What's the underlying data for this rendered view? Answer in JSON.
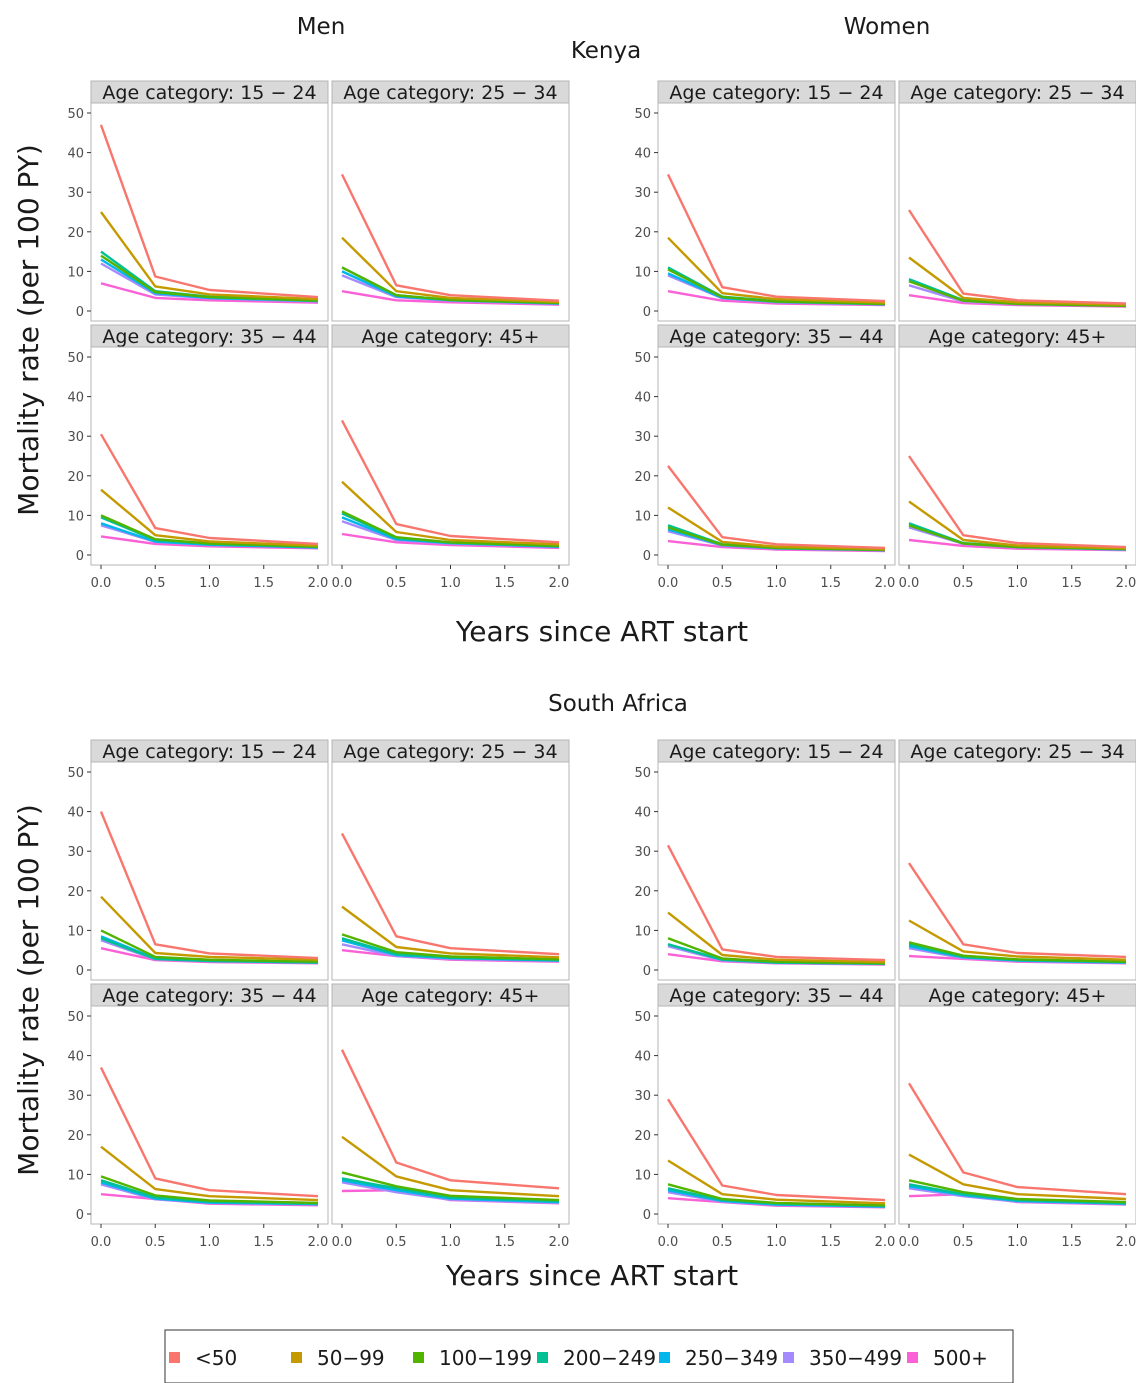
{
  "titles": {
    "kenya": "Kenya",
    "south_africa": "South Africa",
    "men": "Men",
    "women": "Women"
  },
  "axis": {
    "ylabel": "Mortality rate (per 100 PY)",
    "xlabel": "Years since ART start",
    "x_ticks": [
      "0.0",
      "0.5",
      "1.0",
      "1.5",
      "2.0"
    ],
    "y_ticks": [
      "0",
      "10",
      "20",
      "30",
      "40",
      "50"
    ]
  },
  "legend": {
    "items": [
      {
        "label": "<50",
        "color": "#f8766d"
      },
      {
        "label": "50−99",
        "color": "#c49a00"
      },
      {
        "label": "100−199",
        "color": "#53b400"
      },
      {
        "label": "200−249",
        "color": "#00c094"
      },
      {
        "label": "250−349",
        "color": "#00b6eb"
      },
      {
        "label": "350−499",
        "color": "#a58aff"
      },
      {
        "label": "500+",
        "color": "#fb61d7"
      }
    ]
  },
  "chart_data": {
    "type": "line",
    "x": [
      0,
      0.5,
      1,
      2
    ],
    "xlim": [
      0,
      2
    ],
    "ylim": [
      0,
      50
    ],
    "series_names": [
      "<50",
      "50−99",
      "100−199",
      "200−249",
      "250−349",
      "350−499",
      "500+"
    ],
    "groups": [
      {
        "country": "Kenya",
        "sex": "Men",
        "panels": [
          {
            "strip": "Age category:  15  −  24",
            "values": [
              [
                47,
                8.7,
                5.3,
                3.5
              ],
              [
                25,
                6.2,
                4.2,
                3.0
              ],
              [
                14,
                4.8,
                3.5,
                2.6
              ],
              [
                15,
                5.0,
                3.6,
                2.7
              ],
              [
                13,
                4.5,
                3.3,
                2.5
              ],
              [
                12,
                4.2,
                3.2,
                2.4
              ],
              [
                7,
                3.3,
                2.7,
                2.1
              ]
            ]
          },
          {
            "strip": "Age category:  25  −  34",
            "values": [
              [
                34.5,
                6.5,
                4.0,
                2.6
              ],
              [
                18.5,
                5.0,
                3.3,
                2.3
              ],
              [
                11,
                4.0,
                2.8,
                2.0
              ],
              [
                11,
                4.0,
                2.8,
                2.0
              ],
              [
                10,
                3.7,
                2.7,
                1.9
              ],
              [
                9,
                3.5,
                2.6,
                1.8
              ],
              [
                5,
                2.7,
                2.2,
                1.6
              ]
            ]
          },
          {
            "strip": "Age category:  35  −  44",
            "values": [
              [
                30.5,
                6.8,
                4.3,
                2.8
              ],
              [
                16.5,
                5.0,
                3.4,
                2.4
              ],
              [
                10,
                4.0,
                2.9,
                2.1
              ],
              [
                9.5,
                3.8,
                2.8,
                2.0
              ],
              [
                8,
                3.4,
                2.6,
                1.9
              ],
              [
                7.5,
                3.3,
                2.5,
                1.9
              ],
              [
                4.7,
                2.8,
                2.2,
                1.7
              ]
            ]
          },
          {
            "strip": "Age category:  45+",
            "values": [
              [
                34,
                7.8,
                4.8,
                3.2
              ],
              [
                18.5,
                5.8,
                3.8,
                2.7
              ],
              [
                11,
                4.5,
                3.2,
                2.3
              ],
              [
                10.5,
                4.3,
                3.1,
                2.2
              ],
              [
                9.5,
                4.0,
                3.0,
                2.1
              ],
              [
                8.5,
                3.8,
                2.9,
                2.0
              ],
              [
                5.3,
                3.2,
                2.5,
                1.8
              ]
            ]
          }
        ]
      },
      {
        "country": "Kenya",
        "sex": "Women",
        "panels": [
          {
            "strip": "Age category:  15  −  24",
            "values": [
              [
                34.5,
                6.0,
                3.6,
                2.5
              ],
              [
                18.5,
                4.5,
                3.0,
                2.1
              ],
              [
                10.5,
                3.5,
                2.4,
                1.8
              ],
              [
                11,
                3.6,
                2.5,
                1.8
              ],
              [
                9.5,
                3.3,
                2.3,
                1.7
              ],
              [
                9,
                3.2,
                2.2,
                1.7
              ],
              [
                5,
                2.6,
                1.9,
                1.5
              ]
            ]
          },
          {
            "strip": "Age category:  25  −  34",
            "values": [
              [
                25.5,
                4.4,
                2.7,
                1.9
              ],
              [
                13.5,
                3.3,
                2.2,
                1.6
              ],
              [
                7.5,
                2.6,
                1.8,
                1.3
              ],
              [
                8,
                2.7,
                1.9,
                1.4
              ],
              [
                8,
                2.7,
                1.9,
                1.4
              ],
              [
                6.5,
                2.4,
                1.7,
                1.3
              ],
              [
                4,
                2.0,
                1.5,
                1.1
              ]
            ]
          },
          {
            "strip": "Age category:  35  −  44",
            "values": [
              [
                22.5,
                4.5,
                2.7,
                1.8
              ],
              [
                12,
                3.3,
                2.1,
                1.5
              ],
              [
                7,
                2.6,
                1.8,
                1.3
              ],
              [
                7.5,
                2.7,
                1.8,
                1.3
              ],
              [
                6.5,
                2.5,
                1.7,
                1.2
              ],
              [
                6,
                2.4,
                1.6,
                1.2
              ],
              [
                3.5,
                2.0,
                1.4,
                1.0
              ]
            ]
          },
          {
            "strip": "Age category:  45+",
            "values": [
              [
                25,
                5.0,
                3.0,
                2.0
              ],
              [
                13.5,
                3.8,
                2.4,
                1.7
              ],
              [
                7.5,
                2.9,
                2.0,
                1.5
              ],
              [
                8,
                3.0,
                2.1,
                1.5
              ],
              [
                7.5,
                2.9,
                2.0,
                1.4
              ],
              [
                7,
                2.8,
                1.9,
                1.4
              ],
              [
                3.8,
                2.3,
                1.6,
                1.2
              ]
            ]
          }
        ]
      },
      {
        "country": "South Africa",
        "sex": "Men",
        "panels": [
          {
            "strip": "Age category:  15  −  24",
            "values": [
              [
                40,
                6.5,
                4.2,
                3.0
              ],
              [
                18.5,
                4.3,
                3.3,
                2.6
              ],
              [
                10,
                3.3,
                2.6,
                2.1
              ],
              [
                8,
                2.8,
                2.3,
                1.9
              ],
              [
                8.5,
                2.9,
                2.3,
                1.9
              ],
              [
                7.5,
                2.7,
                2.2,
                1.8
              ],
              [
                5.5,
                2.5,
                2.0,
                1.7
              ]
            ]
          },
          {
            "strip": "Age category:  25  −  34",
            "values": [
              [
                34.5,
                8.5,
                5.5,
                4.0
              ],
              [
                16,
                5.8,
                4.2,
                3.2
              ],
              [
                9,
                4.5,
                3.4,
                2.7
              ],
              [
                8,
                4.0,
                3.1,
                2.5
              ],
              [
                7.5,
                3.8,
                3.0,
                2.4
              ],
              [
                6.5,
                3.5,
                2.8,
                2.3
              ],
              [
                5,
                3.5,
                2.6,
                2.1
              ]
            ]
          },
          {
            "strip": "Age category:  35  −  44",
            "values": [
              [
                37,
                9.0,
                6.0,
                4.5
              ],
              [
                17,
                6.3,
                4.5,
                3.5
              ],
              [
                9.5,
                4.7,
                3.4,
                2.8
              ],
              [
                8.5,
                4.2,
                3.1,
                2.6
              ],
              [
                8,
                3.9,
                2.9,
                2.5
              ],
              [
                7.5,
                3.7,
                2.8,
                2.4
              ],
              [
                5,
                3.8,
                2.6,
                2.2
              ]
            ]
          },
          {
            "strip": "Age category:  45+",
            "values": [
              [
                41.5,
                13,
                8.5,
                6.5
              ],
              [
                19.5,
                9.5,
                6.0,
                4.5
              ],
              [
                10.5,
                7.0,
                4.6,
                3.5
              ],
              [
                9,
                6.5,
                4.2,
                3.2
              ],
              [
                8.5,
                6.0,
                3.9,
                3.0
              ],
              [
                8,
                5.5,
                3.6,
                2.8
              ],
              [
                5.8,
                6.0,
                3.5,
                2.7
              ]
            ]
          }
        ]
      },
      {
        "country": "South Africa",
        "sex": "Women",
        "panels": [
          {
            "strip": "Age category:  15  −  24",
            "values": [
              [
                31.5,
                5.2,
                3.3,
                2.5
              ],
              [
                14.5,
                3.8,
                2.6,
                2.0
              ],
              [
                8,
                2.9,
                2.1,
                1.7
              ],
              [
                6.5,
                2.6,
                1.9,
                1.6
              ],
              [
                6.5,
                2.6,
                1.9,
                1.6
              ],
              [
                6,
                2.4,
                1.8,
                1.5
              ],
              [
                4,
                2.2,
                1.7,
                1.4
              ]
            ]
          },
          {
            "strip": "Age category:  25  −  34",
            "values": [
              [
                27,
                6.5,
                4.3,
                3.3
              ],
              [
                12.5,
                4.7,
                3.4,
                2.6
              ],
              [
                7,
                3.6,
                2.7,
                2.1
              ],
              [
                6.5,
                3.3,
                2.5,
                2.0
              ],
              [
                6,
                3.2,
                2.4,
                1.9
              ],
              [
                5.5,
                3.0,
                2.3,
                1.8
              ],
              [
                3.5,
                2.8,
                2.1,
                1.7
              ]
            ]
          },
          {
            "strip": "Age category:  35  −  44",
            "values": [
              [
                29,
                7.2,
                4.8,
                3.5
              ],
              [
                13.5,
                5.0,
                3.6,
                2.7
              ],
              [
                7.5,
                3.8,
                2.8,
                2.2
              ],
              [
                6.5,
                3.5,
                2.6,
                2.0
              ],
              [
                6,
                3.3,
                2.4,
                1.9
              ],
              [
                5.5,
                3.1,
                2.3,
                1.8
              ],
              [
                4,
                3.0,
                2.1,
                1.7
              ]
            ]
          },
          {
            "strip": "Age category:  45+",
            "values": [
              [
                33,
                10.5,
                6.8,
                5.0
              ],
              [
                15,
                7.5,
                5.0,
                3.8
              ],
              [
                8.5,
                5.5,
                3.8,
                3.0
              ],
              [
                7.5,
                5.0,
                3.5,
                2.7
              ],
              [
                7,
                4.8,
                3.3,
                2.6
              ],
              [
                6.5,
                4.5,
                3.1,
                2.5
              ],
              [
                4.5,
                5.0,
                3.0,
                2.4
              ]
            ]
          }
        ]
      }
    ]
  }
}
